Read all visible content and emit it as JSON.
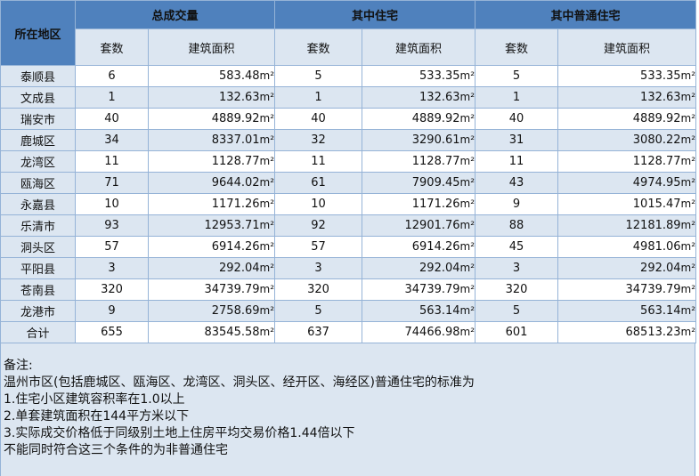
{
  "headers": {
    "region": "所在地区",
    "group_total": "总成交量",
    "group_residential": "其中住宅",
    "group_ordinary": "其中普通住宅",
    "sub_units": "套数",
    "sub_area": "建筑面积"
  },
  "unit_suffix": "m²",
  "rows": [
    {
      "name": "泰顺县",
      "total_units": "6",
      "total_area": "583.48",
      "res_units": "5",
      "res_area": "533.35",
      "ord_units": "5",
      "ord_area": "533.35"
    },
    {
      "name": "文成县",
      "total_units": "1",
      "total_area": "132.63",
      "res_units": "1",
      "res_area": "132.63",
      "ord_units": "1",
      "ord_area": "132.63"
    },
    {
      "name": "瑞安市",
      "total_units": "40",
      "total_area": "4889.92",
      "res_units": "40",
      "res_area": "4889.92",
      "ord_units": "40",
      "ord_area": "4889.92"
    },
    {
      "name": "鹿城区",
      "total_units": "34",
      "total_area": "8337.01",
      "res_units": "32",
      "res_area": "3290.61",
      "ord_units": "31",
      "ord_area": "3080.22"
    },
    {
      "name": "龙湾区",
      "total_units": "11",
      "total_area": "1128.77",
      "res_units": "11",
      "res_area": "1128.77",
      "ord_units": "11",
      "ord_area": "1128.77"
    },
    {
      "name": "瓯海区",
      "total_units": "71",
      "total_area": "9644.02",
      "res_units": "61",
      "res_area": "7909.45",
      "ord_units": "43",
      "ord_area": "4974.95"
    },
    {
      "name": "永嘉县",
      "total_units": "10",
      "total_area": "1171.26",
      "res_units": "10",
      "res_area": "1171.26",
      "ord_units": "9",
      "ord_area": "1015.47"
    },
    {
      "name": "乐清市",
      "total_units": "93",
      "total_area": "12953.71",
      "res_units": "92",
      "res_area": "12901.76",
      "ord_units": "88",
      "ord_area": "12181.89"
    },
    {
      "name": "洞头区",
      "total_units": "57",
      "total_area": "6914.26",
      "res_units": "57",
      "res_area": "6914.26",
      "ord_units": "45",
      "ord_area": "4981.06"
    },
    {
      "name": "平阳县",
      "total_units": "3",
      "total_area": "292.04",
      "res_units": "3",
      "res_area": "292.04",
      "ord_units": "3",
      "ord_area": "292.04"
    },
    {
      "name": "苍南县",
      "total_units": "320",
      "total_area": "34739.79",
      "res_units": "320",
      "res_area": "34739.79",
      "ord_units": "320",
      "ord_area": "34739.79"
    },
    {
      "name": "龙港市",
      "total_units": "9",
      "total_area": "2758.69",
      "res_units": "5",
      "res_area": "563.14",
      "ord_units": "5",
      "ord_area": "563.14"
    },
    {
      "name": "合计",
      "total_units": "655",
      "total_area": "83545.58",
      "res_units": "637",
      "res_area": "74466.98",
      "ord_units": "601",
      "ord_area": "68513.23"
    }
  ],
  "notes": [
    "备注:",
    "温州市区(包括鹿城区、瓯海区、龙湾区、洞头区、经开区、海经区)普通住宅的标准为",
    "1.住宅小区建筑容积率在1.0以上",
    "2.单套建筑面积在144平方米以下",
    "3.实际成交价格低于同级别土地上住房平均交易价格1.44倍以下",
    "不能同时符合这三个条件的为非普通住宅"
  ]
}
